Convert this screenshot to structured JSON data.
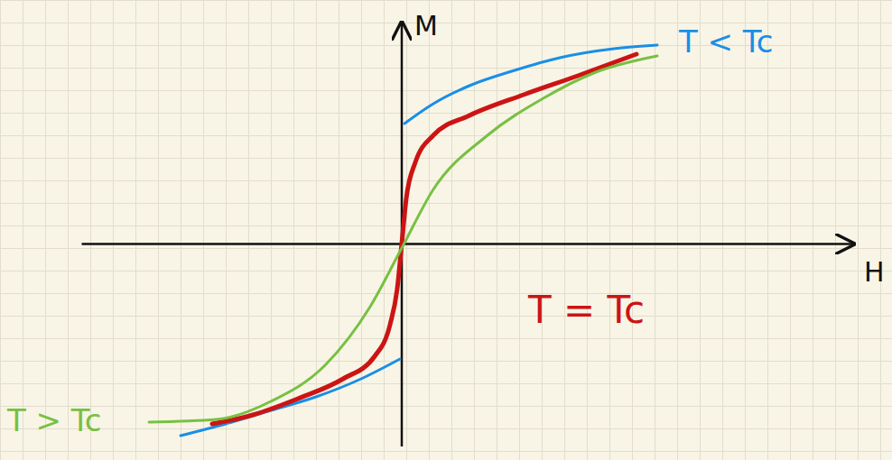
{
  "chart_data": {
    "type": "line",
    "x_label": "H",
    "y_label": "M",
    "xlim": [
      -3.55,
      5.0
    ],
    "ylim": [
      -2.25,
      2.45
    ],
    "xticks": [],
    "yticks": [],
    "tick_labels": false,
    "series": [
      {
        "name": "T < Tc",
        "color": "#1a8ee6",
        "x": [
          -2.45,
          -1.95,
          -1.45,
          -0.95,
          -0.45,
          -0.02,
          0,
          0.03,
          0.35,
          0.75,
          1.25,
          1.75,
          2.35,
          2.83
        ],
        "values": [
          -2.13,
          -2.0,
          -1.85,
          -1.7,
          -1.5,
          -1.28,
          null,
          1.33,
          1.55,
          1.75,
          1.92,
          2.06,
          2.16,
          2.2
        ]
      },
      {
        "name": "T = Tc",
        "color": "#cc1414",
        "x": [
          -2.1,
          -1.65,
          -1.15,
          -0.65,
          -0.3,
          -0.13,
          -0.05,
          0,
          0.05,
          0.15,
          0.35,
          0.75,
          1.35,
          1.95,
          2.6
        ],
        "values": [
          -2.0,
          -1.9,
          -1.72,
          -1.5,
          -1.25,
          -0.9,
          -0.5,
          0,
          0.5,
          0.9,
          1.2,
          1.42,
          1.65,
          1.86,
          2.1
        ]
      },
      {
        "name": "T > Tc",
        "color": "#78c043",
        "x": [
          -2.8,
          -2.05,
          -1.45,
          -0.85,
          -0.35,
          0,
          0.35,
          0.95,
          1.55,
          2.15,
          2.83
        ],
        "values": [
          -1.98,
          -1.95,
          -1.75,
          -1.35,
          -0.7,
          -0.05,
          0.6,
          1.2,
          1.6,
          1.9,
          2.08
        ]
      }
    ]
  }
}
